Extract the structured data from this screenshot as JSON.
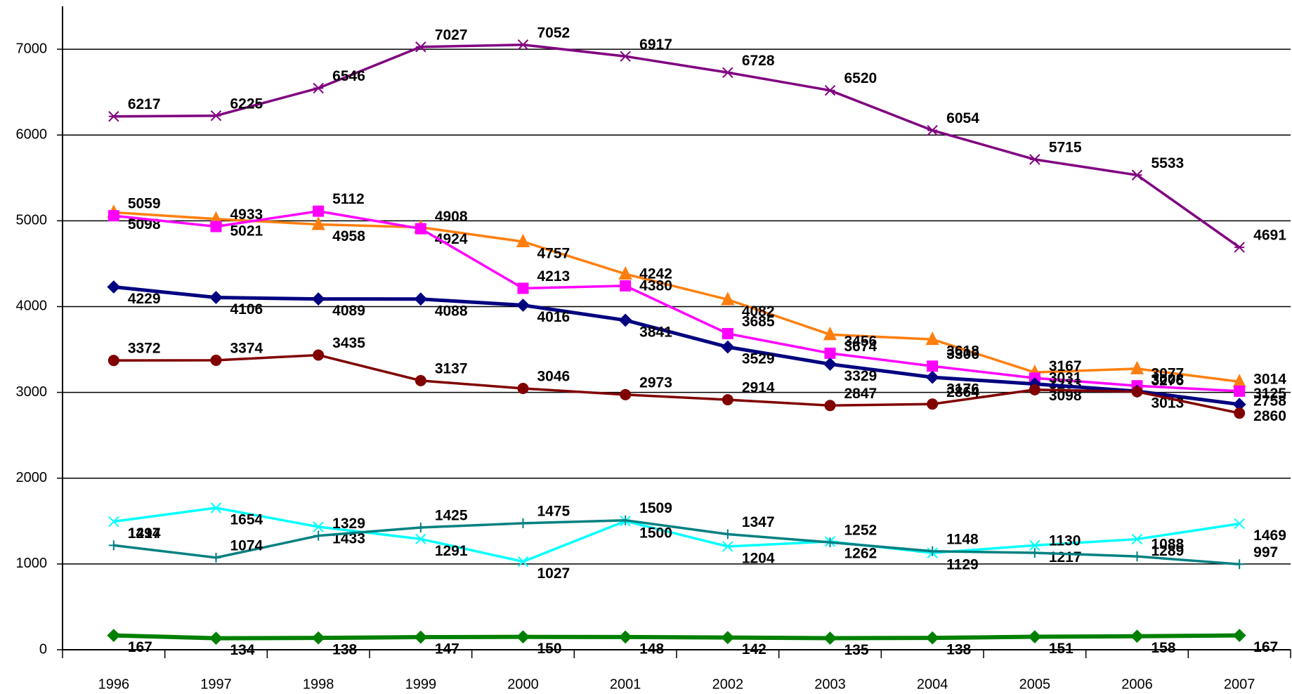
{
  "chart_data": {
    "type": "line",
    "categories": [
      "1996",
      "1997",
      "1998",
      "1999",
      "2000",
      "2001",
      "2002",
      "2003",
      "2004",
      "2005",
      "2006",
      "2007"
    ],
    "ylim": [
      0,
      7500
    ],
    "yticks": [
      0,
      1000,
      2000,
      3000,
      4000,
      5000,
      6000,
      7000
    ],
    "grid": true,
    "series": [
      {
        "color": "#800080",
        "marker": "star",
        "values": [
          6217,
          6225,
          6546,
          7027,
          7052,
          6917,
          6728,
          6520,
          6054,
          5715,
          5533,
          4691
        ]
      },
      {
        "color": "#ff7f0e",
        "marker": "triangle",
        "values": [
          5098,
          5021,
          4958,
          4924,
          4757,
          4380,
          4082,
          3674,
          3618,
          3233,
          3276,
          3125
        ]
      },
      {
        "color": "#ff00ff",
        "marker": "square",
        "values": [
          5059,
          4933,
          5112,
          4908,
          4213,
          4242,
          3685,
          3456,
          3306,
          3167,
          3077,
          3014
        ]
      },
      {
        "color": "#000080",
        "marker": "diamond",
        "values": [
          4229,
          4106,
          4089,
          4088,
          4016,
          3841,
          3529,
          3329,
          3176,
          3098,
          3013,
          2860
        ]
      },
      {
        "color": "#800000",
        "marker": "circle",
        "values": [
          3372,
          3374,
          3435,
          3137,
          3046,
          2973,
          2914,
          2847,
          2864,
          3031,
          3008,
          2758
        ]
      },
      {
        "color": "#00ffff",
        "marker": "x",
        "values": [
          1494,
          1654,
          1433,
          1291,
          1027,
          1500,
          1204,
          1262,
          1129,
          1217,
          1289,
          1469
        ]
      },
      {
        "color": "#008080",
        "marker": "plus",
        "values": [
          1217,
          1074,
          1329,
          1425,
          1475,
          1509,
          1347,
          1252,
          1148,
          1130,
          1088,
          997
        ]
      },
      {
        "color": "#008000",
        "marker": "diamond",
        "values": [
          167,
          134,
          138,
          147,
          150,
          148,
          142,
          135,
          138,
          151,
          158,
          167
        ]
      }
    ]
  }
}
